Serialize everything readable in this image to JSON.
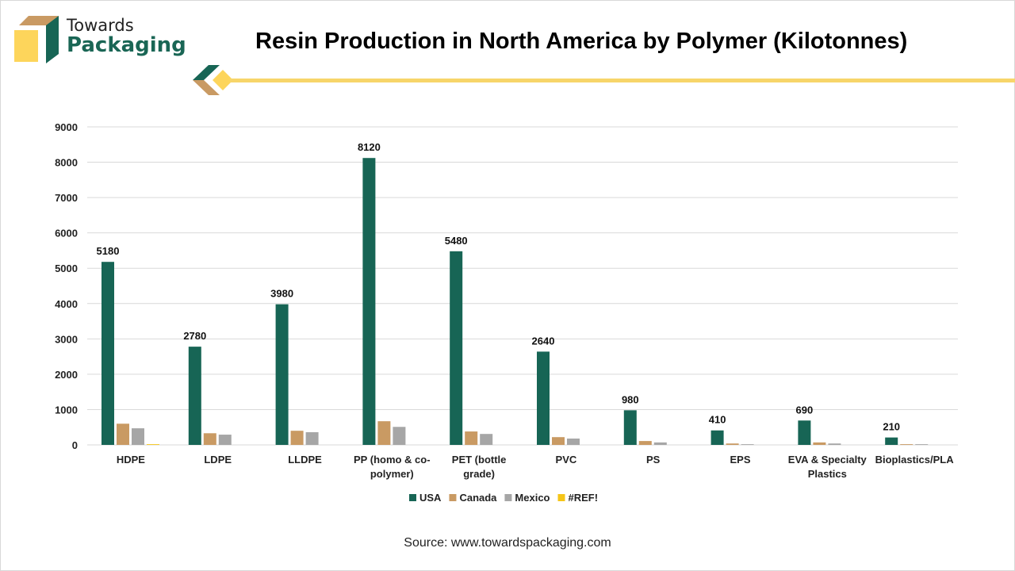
{
  "brand": {
    "line1": "Towards",
    "line2": "Packaging"
  },
  "source": "Source: www.towardspackaging.com",
  "colors": {
    "USA": "#176555",
    "Canada": "#c99a63",
    "Mexico": "#a6a6a6",
    "#REF!": "#f5c518"
  },
  "chart_data": {
    "type": "bar",
    "title": "Resin Production in North America by Polymer (Kilotonnes)",
    "categories": [
      [
        "HDPE"
      ],
      [
        "LDPE"
      ],
      [
        "LLDPE"
      ],
      [
        "PP (homo & co-",
        "polymer)"
      ],
      [
        "PET (bottle",
        "grade)"
      ],
      [
        "PVC"
      ],
      [
        "PS"
      ],
      [
        "EPS"
      ],
      [
        "EVA & Specialty",
        "Plastics"
      ],
      [
        "Bioplastics/PLA"
      ]
    ],
    "series": [
      {
        "name": "USA",
        "values": [
          5180,
          2780,
          3980,
          8120,
          5480,
          2640,
          980,
          410,
          690,
          210
        ],
        "labels": [
          "5180",
          "2780",
          "3980",
          "8120",
          "5480",
          "2640",
          "980",
          "410",
          "690",
          "210"
        ]
      },
      {
        "name": "Canada",
        "values": [
          600,
          330,
          400,
          670,
          380,
          220,
          110,
          40,
          70,
          20
        ]
      },
      {
        "name": "Mexico",
        "values": [
          470,
          290,
          360,
          510,
          310,
          180,
          70,
          20,
          40,
          20
        ]
      },
      {
        "name": "#REF!",
        "values": [
          20,
          0,
          0,
          0,
          0,
          0,
          0,
          0,
          0,
          0
        ]
      }
    ],
    "yticks": [
      "0",
      "1000",
      "2000",
      "3000",
      "4000",
      "5000",
      "6000",
      "7000",
      "8000",
      "9000"
    ],
    "ylim": [
      0,
      9000
    ],
    "grid": true,
    "legend": "bottom"
  }
}
